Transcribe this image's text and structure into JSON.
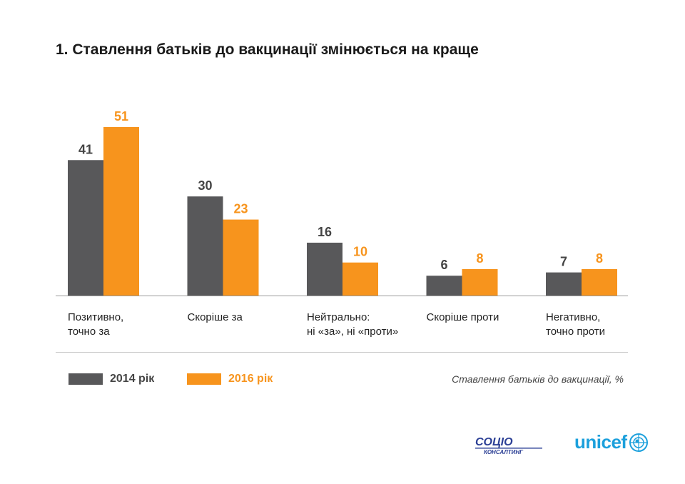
{
  "title": "1. Ставлення батьків до вакцинації змінюється на краще",
  "colors": {
    "series_2014": "#58585a",
    "series_2016": "#f7941d",
    "label_2014": "#444444",
    "label_2016": "#f7941d",
    "axis": "#9a9a9a"
  },
  "chart_data": {
    "type": "bar",
    "categories": [
      [
        "Позитивно,",
        "точно за"
      ],
      [
        "Скоріше за"
      ],
      [
        "Нейтрально:",
        "ні «за», ні «проти»"
      ],
      [
        "Скоріше проти"
      ],
      [
        "Негативно,",
        "точно проти"
      ]
    ],
    "series": [
      {
        "name": "2014 рік",
        "values": [
          41,
          30,
          16,
          6,
          7
        ]
      },
      {
        "name": "2016 рік",
        "values": [
          51,
          23,
          10,
          8,
          8
        ]
      }
    ],
    "ylim": [
      0,
      51
    ],
    "grid": false,
    "legend_position": "bottom-left"
  },
  "legend": {
    "label_2014": "2014 рік",
    "label_2016": "2016 рік"
  },
  "note": "Ставлення батьків до вакцинації, %",
  "logos": {
    "socio_top": "СОЦІО",
    "socio_bottom": "КОНСАЛТИНГ",
    "unicef": "unicef"
  }
}
